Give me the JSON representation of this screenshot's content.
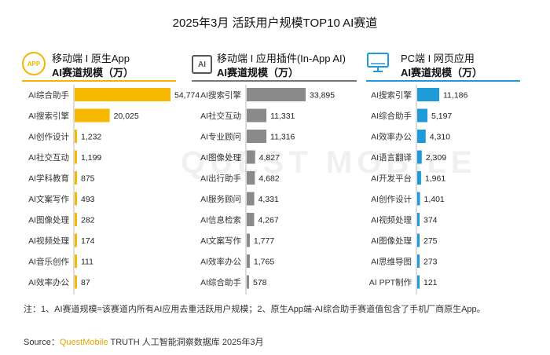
{
  "title": "2025年3月 活跃用户规模TOP10 AI赛道",
  "watermark": "QUEST MOBILE",
  "panels": [
    {
      "icon_name": "app-icon",
      "icon_text": "APP",
      "header_line1": "移动端 I 原生App",
      "header_line2": "AI赛道规模（万）",
      "accent_color": "#f4b400"
    },
    {
      "icon_name": "ai-icon",
      "icon_text": "AI",
      "header_line1": "移动端 I 应用插件(In-App AI)",
      "header_line2": "AI赛道规模（万）",
      "accent_color": "#777777"
    },
    {
      "icon_name": "monitor-icon",
      "icon_text": "",
      "header_line1": "PC端 I 网页应用",
      "header_line2": "AI赛道规模（万）",
      "accent_color": "#1e9bd7"
    }
  ],
  "chart_data": [
    {
      "type": "bar",
      "orientation": "horizontal",
      "categories": [
        "AI综合助手",
        "AI搜索引擎",
        "AI创作设计",
        "AI社交互动",
        "AI学科教育",
        "AI文案写作",
        "AI图像处理",
        "AI视频处理",
        "AI音乐创作",
        "AI效率办公"
      ],
      "values": [
        54774,
        20025,
        1232,
        1199,
        875,
        493,
        282,
        174,
        111,
        87
      ],
      "labels": [
        "54,774",
        "20,025",
        "1,232",
        "1,199",
        "875",
        "493",
        "282",
        "174",
        "111",
        "87"
      ],
      "color": "#f6b900"
    },
    {
      "type": "bar",
      "orientation": "horizontal",
      "categories": [
        "AI搜索引擎",
        "AI社交互动",
        "AI专业顾问",
        "AI图像处理",
        "AI出行助手",
        "AI服务顾问",
        "AI信息检索",
        "AI文案写作",
        "AI效率办公",
        "AI综合助手"
      ],
      "values": [
        33895,
        11331,
        11316,
        4827,
        4682,
        4331,
        4267,
        1777,
        1765,
        578
      ],
      "labels": [
        "33,895",
        "11,331",
        "11,316",
        "4,827",
        "4,682",
        "4,331",
        "4,267",
        "1,777",
        "1,765",
        "578"
      ],
      "color": "#8a8a8a"
    },
    {
      "type": "bar",
      "orientation": "horizontal",
      "categories": [
        "AI搜索引擎",
        "AI综合助手",
        "AI效率办公",
        "AI语言翻译",
        "AI开发平台",
        "AI创作设计",
        "AI视频处理",
        "AI图像处理",
        "AI思维导图",
        "AI PPT制作"
      ],
      "values": [
        11186,
        5197,
        4310,
        2309,
        1961,
        1401,
        374,
        275,
        273,
        121
      ],
      "labels": [
        "11,186",
        "5,197",
        "4,310",
        "2,309",
        "1,961",
        "1,401",
        "374",
        "275",
        "273",
        "121"
      ],
      "color": "#1e9bd7"
    }
  ],
  "note": "注：1、AI赛道规模=该赛道内所有AI应用去重活跃用户规模；2、原生App端-AI综合助手赛道值包含了手机厂商原生App。",
  "source": {
    "prefix": "Source：",
    "brand": "QuestMobile",
    "rest": " TRUTH 人工智能洞察数据库 2025年3月"
  }
}
